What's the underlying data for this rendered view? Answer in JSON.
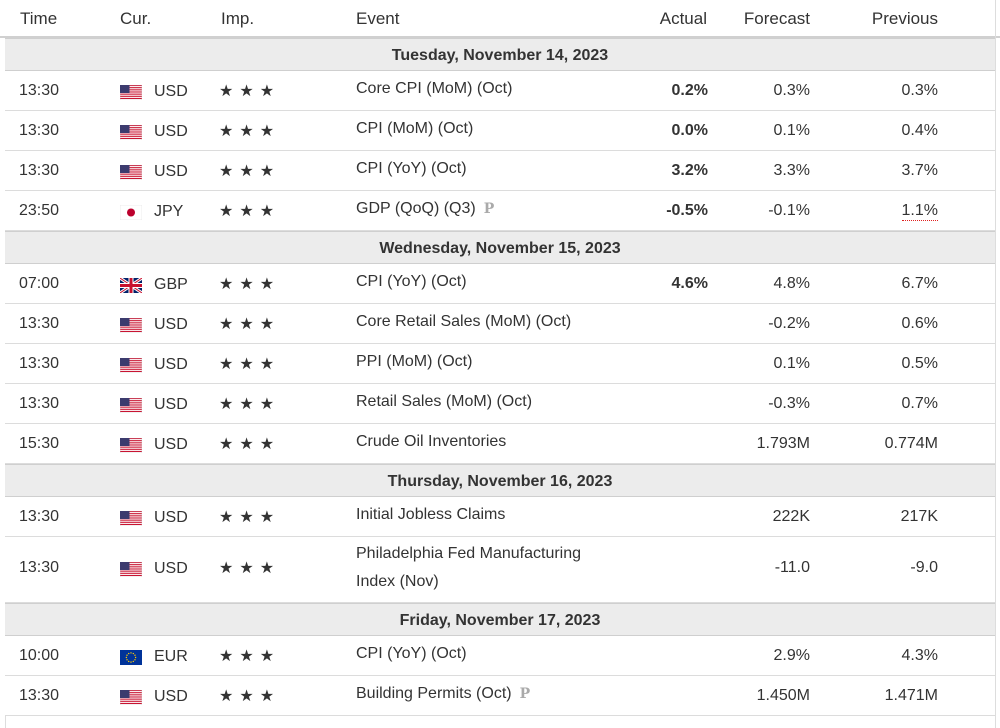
{
  "headers": {
    "time": "Time",
    "cur": "Cur.",
    "imp": "Imp.",
    "event": "Event",
    "actual": "Actual",
    "forecast": "Forecast",
    "previous": "Previous"
  },
  "colors": {
    "negative": "#e0201f",
    "date_row_bg": "#ececec",
    "star": "#9a9a9a"
  },
  "days": [
    {
      "date": "Tuesday, November 14, 2023",
      "rows": [
        {
          "time": "13:30",
          "flag": "us-flag-icon",
          "cur": "USD",
          "stars": "★★★",
          "event": "Core CPI (MoM) (Oct)",
          "actual": "0.2%",
          "forecast": "0.3%",
          "previous": "0.3%"
        },
        {
          "time": "13:30",
          "flag": "us-flag-icon",
          "cur": "USD",
          "stars": "★★★",
          "event": "CPI (MoM) (Oct)",
          "actual": "0.0%",
          "forecast": "0.1%",
          "previous": "0.4%"
        },
        {
          "time": "13:30",
          "flag": "us-flag-icon",
          "cur": "USD",
          "stars": "★★★",
          "event": "CPI (YoY) (Oct)",
          "actual": "3.2%",
          "forecast": "3.3%",
          "previous": "3.7%"
        },
        {
          "time": "23:50",
          "flag": "jp-flag-icon",
          "cur": "JPY",
          "stars": "★★★",
          "event": "GDP (QoQ) (Q3)",
          "badge": "P",
          "actual": "-0.5%",
          "forecast": "-0.1%",
          "previous": "1.1%",
          "prev_revised": true
        }
      ]
    },
    {
      "date": "Wednesday, November 15, 2023",
      "rows": [
        {
          "time": "07:00",
          "flag": "gb-flag-icon",
          "cur": "GBP",
          "stars": "★★★",
          "event": "CPI (YoY) (Oct)",
          "actual": "4.6%",
          "forecast": "4.8%",
          "previous": "6.7%"
        },
        {
          "time": "13:30",
          "flag": "us-flag-icon",
          "cur": "USD",
          "stars": "★★★",
          "event": "Core Retail Sales (MoM) (Oct)",
          "actual": "",
          "forecast": "-0.2%",
          "previous": "0.6%"
        },
        {
          "time": "13:30",
          "flag": "us-flag-icon",
          "cur": "USD",
          "stars": "★★★",
          "event": "PPI (MoM) (Oct)",
          "actual": "",
          "forecast": "0.1%",
          "previous": "0.5%"
        },
        {
          "time": "13:30",
          "flag": "us-flag-icon",
          "cur": "USD",
          "stars": "★★★",
          "event": "Retail Sales (MoM) (Oct)",
          "actual": "",
          "forecast": "-0.3%",
          "previous": "0.7%"
        },
        {
          "time": "15:30",
          "flag": "us-flag-icon",
          "cur": "USD",
          "stars": "★★★",
          "event": "Crude Oil Inventories",
          "actual": "",
          "forecast": "1.793M",
          "previous": "0.774M"
        }
      ]
    },
    {
      "date": "Thursday, November 16, 2023",
      "rows": [
        {
          "time": "13:30",
          "flag": "us-flag-icon",
          "cur": "USD",
          "stars": "★★★",
          "event": "Initial Jobless Claims",
          "actual": "",
          "forecast": "222K",
          "previous": "217K"
        },
        {
          "time": "13:30",
          "flag": "us-flag-icon",
          "cur": "USD",
          "stars": "★★★",
          "event": "Philadelphia Fed Manufacturing",
          "event2": "Index (Nov)",
          "actual": "",
          "forecast": "-11.0",
          "previous": "-9.0"
        }
      ]
    },
    {
      "date": "Friday, November 17, 2023",
      "rows": [
        {
          "time": "10:00",
          "flag": "eu-flag-icon",
          "cur": "EUR",
          "stars": "★★★",
          "event": "CPI (YoY) (Oct)",
          "actual": "",
          "forecast": "2.9%",
          "previous": "4.3%"
        },
        {
          "time": "13:30",
          "flag": "us-flag-icon",
          "cur": "USD",
          "stars": "★★★",
          "event": "Building Permits (Oct)",
          "badge": "P",
          "actual": "",
          "forecast": "1.450M",
          "previous": "1.471M"
        }
      ]
    }
  ]
}
